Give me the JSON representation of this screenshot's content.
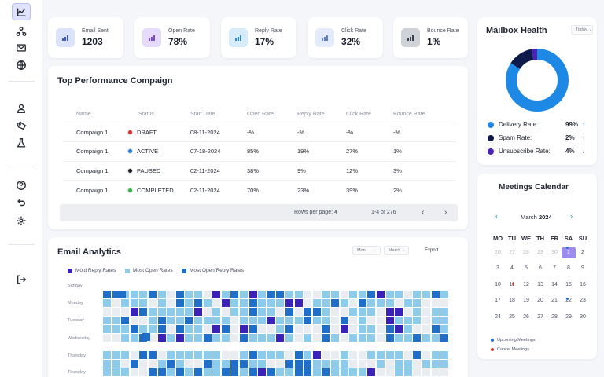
{
  "sidebar": {
    "top_icons": [
      "chart-icon",
      "network-icon",
      "mail-icon",
      "globe-icon"
    ],
    "mid_icons": [
      "user-icon",
      "tag-icon",
      "flask-icon"
    ],
    "bottom_icons": [
      "help-icon",
      "undo-icon",
      "settings-icon"
    ],
    "logout_icon": "logout-icon"
  },
  "kpis": [
    {
      "label": "Email Sent",
      "value": "1203",
      "bg": "#dbe4fb",
      "icon_color": "#3b5bcc"
    },
    {
      "label": "Open Rate",
      "value": "78%",
      "bg": "#e7dbfb",
      "icon_color": "#7b47d6"
    },
    {
      "label": "Reply Rate",
      "value": "17%",
      "bg": "#d6ecfa",
      "icon_color": "#2f86c9"
    },
    {
      "label": "Click Rate",
      "value": "32%",
      "bg": "#e4ecfb",
      "icon_color": "#5a7fd6"
    },
    {
      "label": "Bounce Rate",
      "value": "1%",
      "bg": "#cfd2d6",
      "icon_color": "#3a4150"
    }
  ],
  "performance": {
    "title": "Top  Performance Compaign",
    "columns": [
      "Name",
      "Status",
      "Start Date",
      "Open Rate",
      "Reply Rate",
      "Click Rate",
      "Bounce Rate"
    ],
    "rows": [
      {
        "name": "Compaign 1",
        "status": "DRAFT",
        "status_color": "#e0312f",
        "start": "08-11-2024",
        "open": "-%",
        "reply": "-%",
        "click": "-%",
        "bounce": "-%"
      },
      {
        "name": "Compaign 1",
        "status": "ACTIVE",
        "status_color": "#2a7fd4",
        "start": "07-18-2024",
        "open": "85%",
        "reply": "19%",
        "click": "27%",
        "bounce": "1%"
      },
      {
        "name": "Compaign 1",
        "status": "PAUSED",
        "status_color": "#1c1f26",
        "start": "02-11-2024",
        "open": "38%",
        "reply": "9%",
        "click": "12%",
        "bounce": "3%"
      },
      {
        "name": "Compaign 1",
        "status": "COMPLETED",
        "status_color": "#35b548",
        "start": "02-11-2024",
        "open": "70%",
        "reply": "23%",
        "click": "39%",
        "bounce": "2%"
      }
    ],
    "rows_per_page_label": "Rows per page: 4",
    "range_label": "1-4 of 276"
  },
  "analytics": {
    "title": "Email Analytics",
    "filter_day": "Mon",
    "filter_month": "March",
    "export_label": "Export",
    "legend": [
      {
        "label": "Moid Reply Rates",
        "color": "#3a22b8"
      },
      {
        "label": "Most Open Rates",
        "color": "#8ccbea"
      },
      {
        "label": "Most Open/Reply Rates",
        "color": "#1f6fc9"
      }
    ],
    "days": [
      "Sunday",
      "Monday",
      "Tuesday",
      "Wednesday",
      "Thursday",
      "Thursday"
    ]
  },
  "mailbox": {
    "title": "Mailbox Health",
    "filter": "Today",
    "items": [
      {
        "label": "Delivery Rate:",
        "value": "99%",
        "arrow": "↑",
        "color": "#1e88e5"
      },
      {
        "label": "Spam Rate:",
        "value": "2%",
        "arrow": "↑",
        "color": "#0d1b4a"
      },
      {
        "label": "Unsubscribe Rate:",
        "value": "4%",
        "arrow": "↓",
        "color": "#4a22b8"
      }
    ],
    "donut": [
      {
        "value": 84,
        "color": "#1e88e5"
      },
      {
        "value": 13,
        "color": "#0d1b4a"
      },
      {
        "value": 3,
        "color": "#4a22b8"
      }
    ]
  },
  "calendar": {
    "title": "Meetings Calendar",
    "month": "March",
    "year": "2024",
    "weekdays": [
      "MO",
      "TU",
      "WE",
      "TH",
      "FR",
      "SA",
      "SU"
    ],
    "weeks": [
      [
        "26",
        "27",
        "28",
        "29",
        "30",
        "1",
        "2"
      ],
      [
        "3",
        "4",
        "5",
        "6",
        "7",
        "8",
        "9"
      ],
      [
        "10",
        "11",
        "12",
        "13",
        "14",
        "15",
        "16"
      ],
      [
        "17",
        "18",
        "19",
        "20",
        "21",
        "22",
        "23"
      ],
      [
        "24",
        "25",
        "26",
        "27",
        "28",
        "29",
        "30"
      ]
    ],
    "legend": [
      {
        "label": "Upcoming Meetings",
        "color": "#1e6fd9"
      },
      {
        "label": "Cancel Meetings",
        "color": "#d83a2f"
      }
    ]
  }
}
